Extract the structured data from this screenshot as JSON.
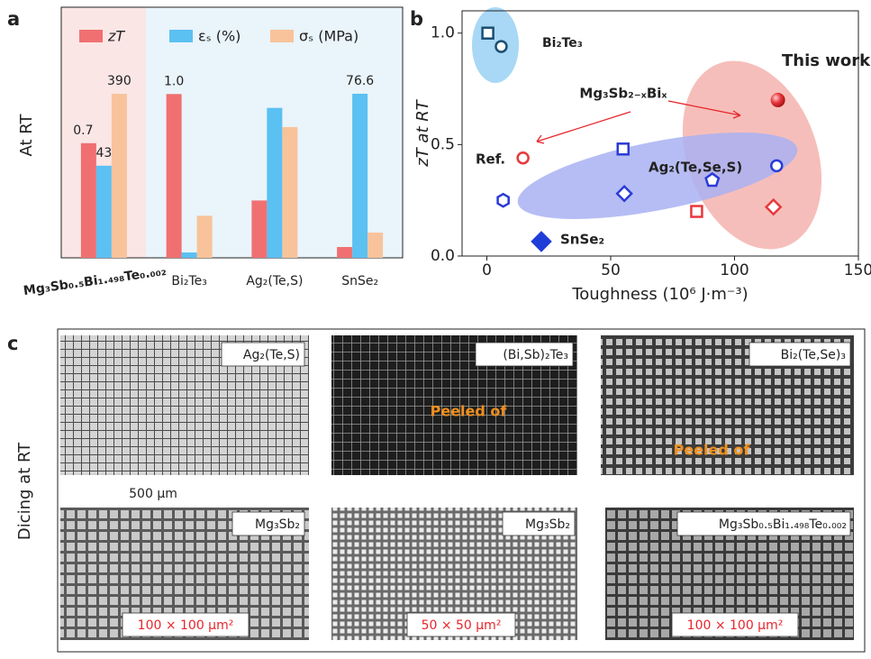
{
  "panel_labels": [
    "a",
    "b",
    "c"
  ],
  "chart_data": [
    {
      "type": "bar",
      "ylabel": "At RT",
      "categories": [
        "Mg₃Sb₀.₅Bi₁.₄₉₈Te₀.₀₀₂",
        "Bi₂Te₃",
        "Ag₂(Te,S)",
        "SnSe₂"
      ],
      "category_label_colors": [
        "#e8252b",
        "#222222",
        "#222222",
        "#222222"
      ],
      "series": [
        {
          "name": "zT",
          "color": "#f07072",
          "ylim": [
            0,
            1.53
          ],
          "values": [
            0.7,
            1.0,
            0.35,
            0.066
          ],
          "value_labels": [
            "0.7",
            "1.0",
            null,
            null
          ]
        },
        {
          "name": "εₛ (%)",
          "color": "#5bc0f2",
          "ylim": [
            0,
            117
          ],
          "values": [
            43,
            2.5,
            70,
            76.6
          ],
          "value_labels": [
            "43",
            null,
            null,
            "76.6"
          ]
        },
        {
          "name": "σₛ (MPa)",
          "color": "#f8c39a",
          "ylim": [
            0,
            596
          ],
          "values": [
            390,
            100,
            311,
            60
          ],
          "value_labels": [
            "390",
            null,
            null,
            null
          ]
        }
      ]
    },
    {
      "type": "scatter",
      "xlabel": "Toughness (10⁶ J·m⁻³)",
      "ylabel": "zT at RT",
      "xlim": [
        -10,
        150
      ],
      "ylim": [
        0,
        1.1
      ],
      "xticks": [
        0,
        50,
        100,
        150
      ],
      "yticks": [
        {
          "value": 0,
          "label": "0.0"
        },
        0.5,
        {
          "value": 1,
          "label": "1.0"
        }
      ],
      "annotations": [
        "Mg₃Sb₂₋ₓBiₓ"
      ],
      "series": [
        {
          "name": "Bi₂Te₃",
          "color": "#1b4f72",
          "x": [
            0.4,
            5.8
          ],
          "values": [
            1.0,
            0.94
          ],
          "markers": [
            "square",
            "circle"
          ]
        },
        {
          "name": "Ag₂(Te,Se,S)",
          "color": "#2b3bd6",
          "x": [
            6.6,
            55,
            55.5,
            91,
            117
          ],
          "values": [
            0.25,
            0.48,
            0.28,
            0.34,
            0.405
          ],
          "markers": [
            "hexagon",
            "square",
            "diamond",
            "pentagon",
            "circle"
          ]
        },
        {
          "name": "SnSe₂",
          "color": "#1f3ed8",
          "x": [
            22
          ],
          "values": [
            0.065
          ],
          "markers": [
            "filled-diamond"
          ]
        },
        {
          "name": "Ref.",
          "color": "#e8383d",
          "x": [
            14.6
          ],
          "values": [
            0.44
          ],
          "markers": [
            "circle"
          ]
        },
        {
          "name": "This work",
          "color": "#e8383d",
          "x": [
            117.5,
            84.7,
            115.7
          ],
          "values": [
            0.7,
            0.2,
            0.22
          ],
          "markers": [
            "sphere",
            "square",
            "diamond"
          ]
        }
      ]
    }
  ],
  "micrographs": {
    "ylabel": "Dicing at RT",
    "scale_bar": "500 µm",
    "panels": [
      {
        "label": "Ag₂(Te,S)"
      },
      {
        "label": "(Bi,Sb)₂Te₃",
        "note": "Peeled of"
      },
      {
        "label": "Bi₂(Te,Se)₃",
        "note": "Peeled of"
      },
      {
        "label": "Mg₃Sb₂",
        "size": "100 × 100 µm²"
      },
      {
        "label": "Mg₃Sb₂",
        "size": "50 × 50 µm²"
      },
      {
        "label": "Mg₃Sb₀.₅Bi₁.₄₉₈Te₀.₀₀₂",
        "size": "100 × 100 µm²"
      }
    ]
  }
}
